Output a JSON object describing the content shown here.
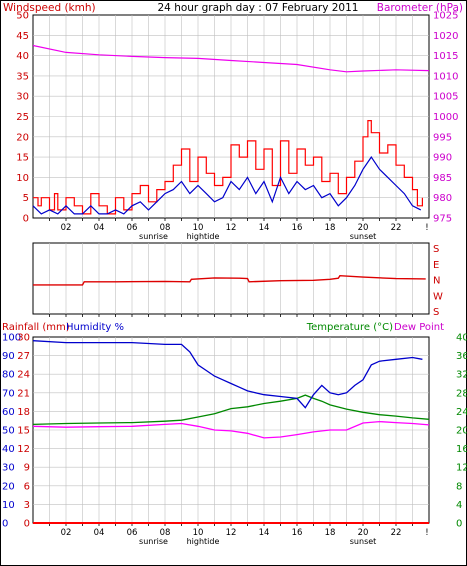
{
  "header": {
    "title": "24 hour graph day : 07 February 2011",
    "left_label": "Windspeed (kmh)",
    "right_label": "Barometer (hPa)"
  },
  "bottom_header": {
    "rainfall_label": "Rainfall (mm)",
    "humidity_label": "Humidity %",
    "temperature_label": "Temperature (°C)",
    "dewpoint_label": "Dew Point"
  },
  "x_ticks": [
    "02",
    "04",
    "06",
    "08",
    "10",
    "12",
    "14",
    "16",
    "18",
    "20",
    "22"
  ],
  "events": [
    {
      "label": "sunrise",
      "hour": 7.0
    },
    {
      "label": "hightide",
      "hour": 10.0
    },
    {
      "label": "sunset",
      "hour": 19.7
    }
  ],
  "direction_labels": [
    "S",
    "E",
    "N",
    "W",
    "S"
  ],
  "colors": {
    "wind": "#cc0000",
    "gust": "#ff0000",
    "barometer": "#ee00ee",
    "humidity": "#0000cc",
    "temperature": "#008800",
    "dewpoint": "#ff00ff",
    "rain": "#ff0000",
    "grid": "#c0c0c0",
    "frame": "#000000"
  },
  "chart_data": [
    {
      "type": "line",
      "title": "24 hour graph day : 07 February 2011",
      "ylabel": "Windspeed (kmh)",
      "y2label": "Barometer (hPa)",
      "xlim": [
        0,
        24
      ],
      "ylim": [
        0,
        50
      ],
      "y2lim": [
        975,
        1025
      ],
      "yticks": [
        "0",
        "5",
        "10",
        "15",
        "20",
        "25",
        "30",
        "35",
        "40",
        "45",
        "50"
      ],
      "y2ticks": [
        "975",
        "980",
        "985",
        "990",
        "995",
        "1000",
        "1005",
        "1010",
        "1015",
        "1020",
        "1025"
      ],
      "series": [
        {
          "name": "Gust",
          "axis": "left",
          "x": [
            0,
            0.3,
            0.5,
            1,
            1.3,
            1.5,
            2,
            2.5,
            3,
            3.5,
            4,
            4.5,
            5,
            5.5,
            6,
            6.5,
            7,
            7.5,
            8,
            8.5,
            9,
            9.5,
            10,
            10.5,
            11,
            11.5,
            12,
            12.5,
            13,
            13.5,
            14,
            14.5,
            15,
            15.5,
            16,
            16.5,
            17,
            17.5,
            18,
            18.5,
            19,
            19.5,
            20,
            20.3,
            20.5,
            21,
            21.5,
            22,
            22.5,
            23,
            23.3,
            23.6
          ],
          "y": [
            5,
            3,
            5,
            2,
            6,
            2,
            5,
            3,
            1,
            6,
            3,
            1,
            5,
            2,
            6,
            8,
            4,
            7,
            9,
            13,
            17,
            9,
            15,
            11,
            8,
            10,
            18,
            15,
            19,
            12,
            17,
            8,
            19,
            11,
            17,
            13,
            15,
            9,
            11,
            6,
            10,
            14,
            20,
            24,
            21,
            16,
            18,
            13,
            10,
            7,
            3,
            5
          ]
        },
        {
          "name": "Windspeed",
          "axis": "left",
          "x": [
            0,
            0.5,
            1,
            1.5,
            2,
            2.5,
            3,
            3.5,
            4,
            4.5,
            5,
            5.5,
            6,
            6.5,
            7,
            7.5,
            8,
            8.5,
            9,
            9.5,
            10,
            10.5,
            11,
            11.5,
            12,
            12.5,
            13,
            13.5,
            14,
            14.5,
            15,
            15.5,
            16,
            16.5,
            17,
            17.5,
            18,
            18.5,
            19,
            19.5,
            20,
            20.5,
            21,
            21.5,
            22,
            22.5,
            23,
            23.5
          ],
          "y": [
            3,
            1,
            2,
            1,
            3,
            1,
            1,
            3,
            1,
            1,
            2,
            1,
            3,
            4,
            2,
            4,
            6,
            7,
            9,
            6,
            8,
            6,
            4,
            5,
            9,
            7,
            10,
            6,
            9,
            4,
            10,
            6,
            9,
            7,
            8,
            5,
            6,
            3,
            5,
            8,
            12,
            15,
            12,
            10,
            8,
            6,
            3,
            2
          ]
        },
        {
          "name": "Barometer",
          "axis": "right",
          "x": [
            0,
            2,
            4,
            6,
            8,
            10,
            12,
            14,
            16,
            18,
            19,
            20,
            22,
            24
          ],
          "y": [
            1017.5,
            1015.8,
            1015.2,
            1014.8,
            1014.5,
            1014.3,
            1013.8,
            1013.3,
            1012.8,
            1011.5,
            1011,
            1011.2,
            1011.5,
            1011.3
          ]
        }
      ]
    },
    {
      "type": "line",
      "title": "",
      "ylabel": "",
      "xlim": [
        0,
        24
      ],
      "ylim": [
        360,
        0
      ],
      "yticks": [
        "S",
        "E",
        "N",
        "W",
        "S"
      ],
      "series": [
        {
          "name": "",
          "x": [
            0,
            1,
            2,
            3,
            3.1,
            5,
            8,
            9.5,
            9.6,
            11,
            12.5,
            13,
            13.1,
            15,
            17,
            18,
            18.5,
            18.6,
            20,
            22,
            23.8
          ],
          "y": [
            180,
            180,
            180,
            180,
            162,
            162,
            160,
            162,
            148,
            140,
            142,
            144,
            162,
            156,
            154,
            148,
            142,
            128,
            136,
            144,
            146
          ]
        }
      ]
    },
    {
      "type": "line",
      "title": "",
      "ylabel": "Rainfall (mm)",
      "y2label": "Temperature (°C)",
      "xlim": [
        0,
        24
      ],
      "ylim": [
        0,
        30
      ],
      "yticks": [
        "0",
        "3",
        "6",
        "9",
        "12",
        "15",
        "18",
        "21",
        "24",
        "27",
        "30"
      ],
      "ylim_humidity": [
        0,
        100
      ],
      "yticks_humidity": [
        "0",
        "10",
        "20",
        "30",
        "40",
        "50",
        "60",
        "70",
        "80",
        "90",
        "100"
      ],
      "y2lim": [
        0,
        40
      ],
      "y2ticks": [
        "0",
        "4",
        "8",
        "12",
        "16",
        "20",
        "24",
        "28",
        "32",
        "36",
        "40"
      ],
      "series": [
        {
          "name": "Humidity %",
          "axis": "humidity",
          "x": [
            0,
            2,
            4,
            6,
            8,
            9,
            9.5,
            10,
            10.5,
            11,
            11.5,
            12,
            12.5,
            13,
            14,
            15,
            16,
            16.5,
            17,
            17.5,
            18,
            18.5,
            19,
            19.5,
            20,
            20.5,
            21,
            22,
            23,
            23.6
          ],
          "y": [
            98,
            97,
            97,
            97,
            96,
            96,
            92,
            85,
            82,
            79,
            77,
            75,
            73,
            71,
            69,
            68,
            67,
            62,
            69,
            74,
            70,
            69,
            70,
            74,
            77,
            85,
            87,
            88,
            89,
            88
          ]
        },
        {
          "name": "Temperature (°C)",
          "axis": "right",
          "x": [
            0,
            2,
            4,
            6,
            8,
            9,
            10,
            11,
            12,
            13,
            14,
            15,
            16,
            16.5,
            17,
            17.5,
            18,
            19,
            20,
            21,
            22,
            23,
            24
          ],
          "y": [
            21.2,
            21.4,
            21.5,
            21.6,
            21.9,
            22.1,
            22.8,
            23.5,
            24.6,
            25,
            25.7,
            26.2,
            26.8,
            27.5,
            26.8,
            26.2,
            25.4,
            24.5,
            23.8,
            23.3,
            23,
            22.6,
            22.3
          ]
        },
        {
          "name": "Dew Point",
          "axis": "right",
          "x": [
            0,
            2,
            4,
            6,
            8,
            9,
            10,
            11,
            12,
            13,
            14,
            15,
            16,
            17,
            18,
            19,
            20,
            21,
            22,
            23,
            24
          ],
          "y": [
            20.8,
            20.6,
            20.7,
            20.8,
            21.2,
            21.4,
            20.8,
            20,
            19.8,
            19.3,
            18.3,
            18.5,
            19,
            19.6,
            20,
            20,
            21.5,
            21.8,
            21.6,
            21.4,
            21.1
          ]
        },
        {
          "name": "Rainfall (mm)",
          "axis": "left",
          "x": [
            0,
            24
          ],
          "y": [
            0,
            0
          ]
        }
      ]
    }
  ]
}
